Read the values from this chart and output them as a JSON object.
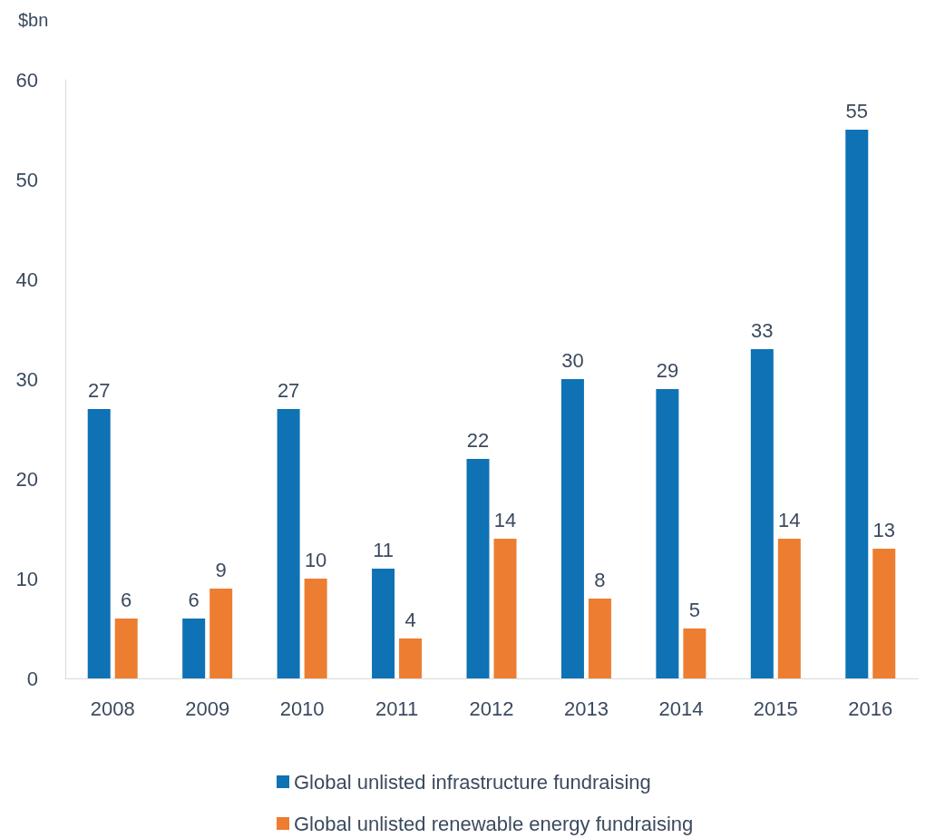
{
  "chart_data": {
    "type": "bar",
    "ylabel": "$bn",
    "categories": [
      "2008",
      "2009",
      "2010",
      "2011",
      "2012",
      "2013",
      "2014",
      "2015",
      "2016"
    ],
    "series": [
      {
        "name": "Global unlisted infrastructure fundraising",
        "color": "#0e72b5",
        "values": [
          27,
          6,
          27,
          11,
          22,
          30,
          29,
          33,
          55
        ]
      },
      {
        "name": "Global unlisted renewable energy fundraising",
        "color": "#ed7d31",
        "values": [
          6,
          9,
          10,
          4,
          14,
          8,
          5,
          14,
          13
        ]
      }
    ],
    "ylim": [
      0,
      60
    ],
    "yticks": [
      0,
      10,
      20,
      30,
      40,
      50,
      60
    ],
    "grid": false,
    "legend": "bottom",
    "data_labels": true
  }
}
